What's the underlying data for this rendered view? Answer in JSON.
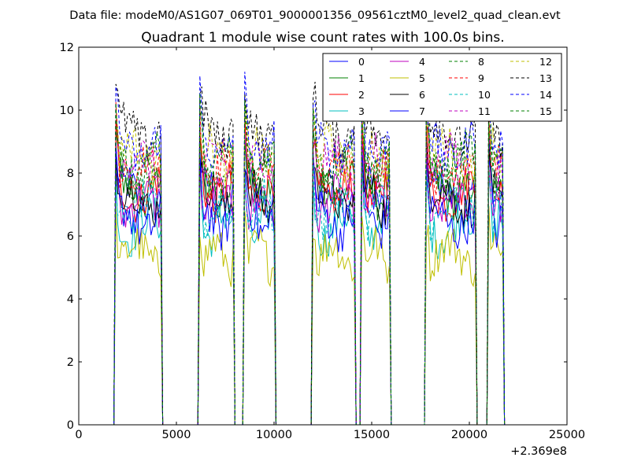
{
  "figure": {
    "supertitle": "Data file: modeM0/AS1G07_069T01_9000001356_09561cztM0_level2_quad_clean.evt"
  },
  "chart_data": {
    "type": "line",
    "title": "Quadrant 1 module wise count rates with 100.0s bins.",
    "xlabel": "",
    "ylabel": "",
    "xlim": [
      0,
      25000
    ],
    "ylim": [
      0,
      12
    ],
    "x_offset_label": "+2.369e8",
    "x_ticks": [
      0,
      5000,
      10000,
      15000,
      20000,
      25000
    ],
    "y_ticks": [
      0,
      2,
      4,
      6,
      8,
      10,
      12
    ],
    "x_tick_labels": [
      "0",
      "5000",
      "10000",
      "15000",
      "20000",
      "25000"
    ],
    "y_tick_labels": [
      "0",
      "2",
      "4",
      "6",
      "8",
      "10",
      "12"
    ],
    "legend_position": "top-right",
    "active_segments": [
      {
        "start": 1900,
        "end": 4200
      },
      {
        "start": 6200,
        "end": 7900
      },
      {
        "start": 8500,
        "end": 10000
      },
      {
        "start": 12000,
        "end": 14100
      },
      {
        "start": 14500,
        "end": 15900
      },
      {
        "start": 17800,
        "end": 20300
      },
      {
        "start": 21000,
        "end": 21700
      }
    ],
    "series": [
      {
        "name": "0",
        "color": "#0000ff",
        "style": "solid",
        "level": 7.3
      },
      {
        "name": "1",
        "color": "#008000",
        "style": "solid",
        "level": 7.5
      },
      {
        "name": "2",
        "color": "#ff0000",
        "style": "solid",
        "level": 7.4
      },
      {
        "name": "3",
        "color": "#00bfbf",
        "style": "solid",
        "level": 6.3
      },
      {
        "name": "4",
        "color": "#bf00bf",
        "style": "solid",
        "level": 7.0
      },
      {
        "name": "5",
        "color": "#bfbf00",
        "style": "solid",
        "level": 5.4
      },
      {
        "name": "6",
        "color": "#000000",
        "style": "solid",
        "level": 7.2
      },
      {
        "name": "7",
        "color": "#0000ff",
        "style": "solid",
        "level": 6.5
      },
      {
        "name": "8",
        "color": "#008000",
        "style": "dashed",
        "level": 8.0
      },
      {
        "name": "9",
        "color": "#ff0000",
        "style": "dashed",
        "level": 8.2
      },
      {
        "name": "10",
        "color": "#00bfbf",
        "style": "dashed",
        "level": 6.8
      },
      {
        "name": "11",
        "color": "#bf00bf",
        "style": "dashed",
        "level": 8.3
      },
      {
        "name": "12",
        "color": "#bfbf00",
        "style": "dashed",
        "level": 8.6
      },
      {
        "name": "13",
        "color": "#000000",
        "style": "dashed",
        "level": 9.3
      },
      {
        "name": "14",
        "color": "#0000ff",
        "style": "dashed",
        "level": 8.8
      },
      {
        "name": "15",
        "color": "#008000",
        "style": "dashed",
        "level": 8.4
      }
    ]
  }
}
